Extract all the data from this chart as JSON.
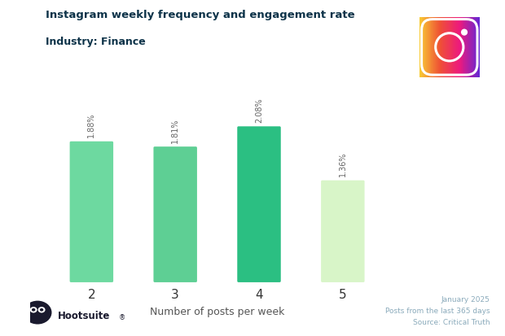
{
  "title_line1": "Instagram weekly frequency and engagement rate",
  "title_line2": "Industry: Finance",
  "categories": [
    "2",
    "3",
    "4",
    "5"
  ],
  "values": [
    1.88,
    1.81,
    2.08,
    1.36
  ],
  "labels": [
    "1.88%",
    "1.81%",
    "2.08%",
    "1.36%"
  ],
  "bar_colors": [
    "#6dd9a0",
    "#5ecf94",
    "#2bbf82",
    "#d8f5c8"
  ],
  "xlabel": "Number of posts per week",
  "title_color": "#0d3349",
  "xlabel_color": "#555555",
  "tick_color": "#333333",
  "label_color": "#666666",
  "footer_text": "January 2025\nPosts from the last 365 days\nSource: Critical Truth",
  "footer_color": "#8aaabb",
  "background_color": "#ffffff",
  "ylim": [
    0,
    2.6
  ],
  "bar_width": 0.52
}
